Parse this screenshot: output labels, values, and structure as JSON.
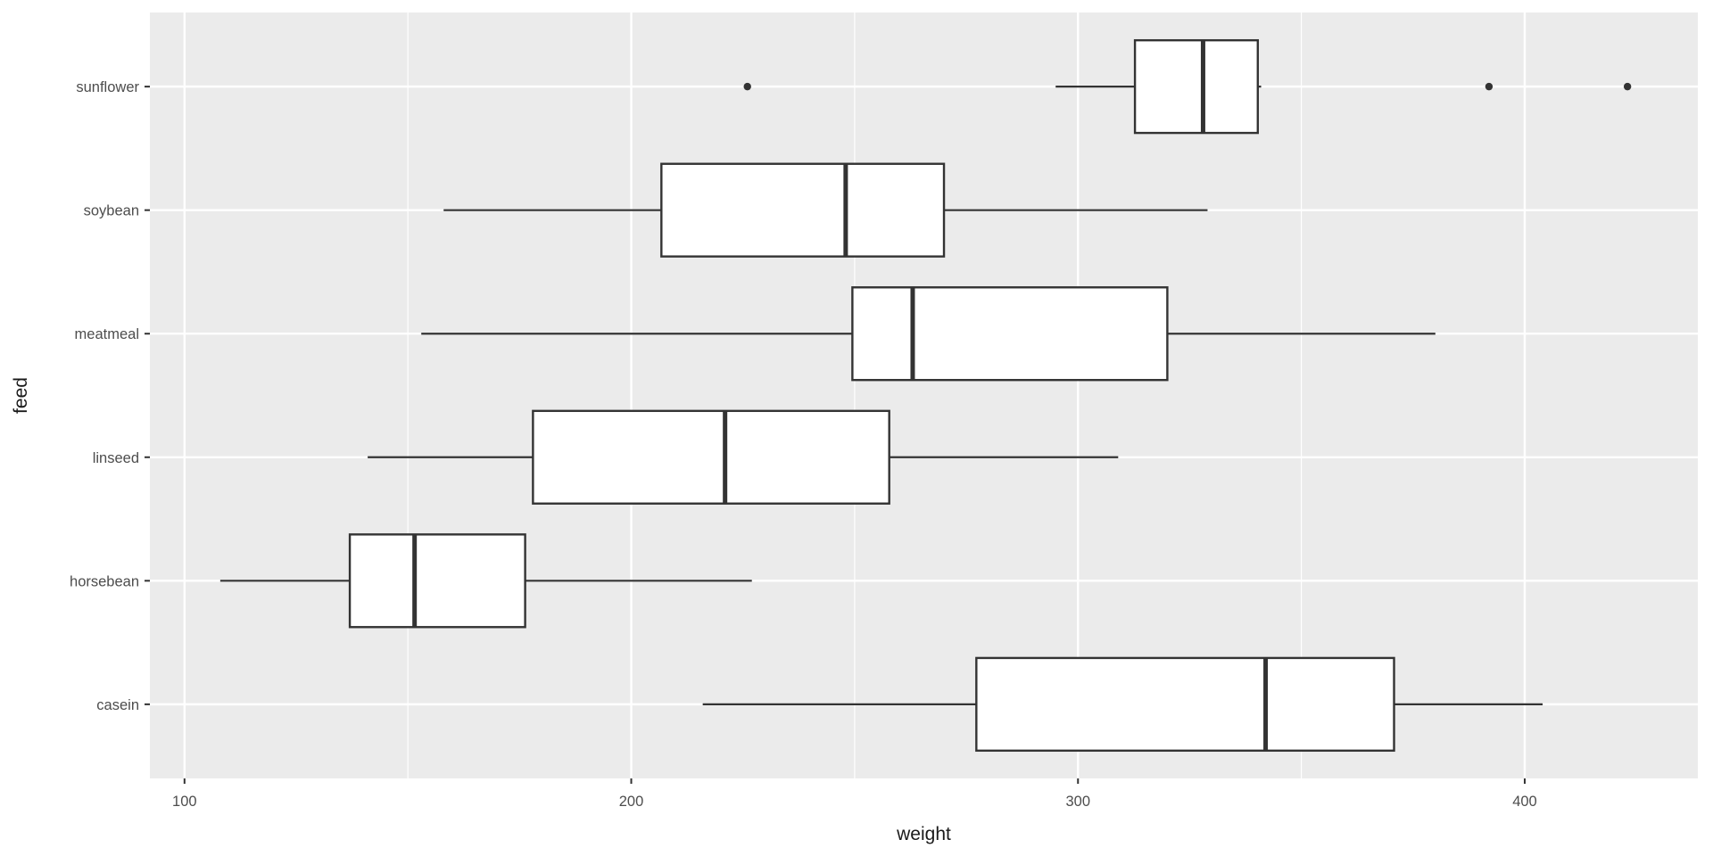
{
  "chart_data": {
    "type": "boxplot",
    "orientation": "horizontal",
    "title": "",
    "xlabel": "weight",
    "ylabel": "feed",
    "x_ticks": [
      100,
      200,
      300,
      400
    ],
    "x_tick_labels": [
      "100",
      "200",
      "300",
      "400"
    ],
    "x_minor_gridlines": [
      150,
      250,
      350
    ],
    "x_domain": [
      92.25,
      438.75
    ],
    "categories_top_to_bottom": [
      "sunflower",
      "soybean",
      "meatmeal",
      "linseed",
      "horsebean",
      "casein"
    ],
    "series": [
      {
        "feed": "sunflower",
        "whisker_low": 295,
        "q1": 312.75,
        "median": 328,
        "q3": 340.25,
        "whisker_high": 341,
        "outliers": [
          226,
          392,
          423
        ]
      },
      {
        "feed": "soybean",
        "whisker_low": 158,
        "q1": 206.75,
        "median": 248,
        "q3": 270,
        "whisker_high": 329,
        "outliers": []
      },
      {
        "feed": "meatmeal",
        "whisker_low": 153,
        "q1": 249.5,
        "median": 263,
        "q3": 320,
        "whisker_high": 380,
        "outliers": []
      },
      {
        "feed": "linseed",
        "whisker_low": 141,
        "q1": 178,
        "median": 221,
        "q3": 257.75,
        "whisker_high": 309,
        "outliers": []
      },
      {
        "feed": "horsebean",
        "whisker_low": 108,
        "q1": 137,
        "median": 151.5,
        "q3": 176.25,
        "whisker_high": 227,
        "outliers": []
      },
      {
        "feed": "casein",
        "whisker_low": 216,
        "q1": 277.25,
        "median": 342,
        "q3": 370.75,
        "whisker_high": 404,
        "outliers": []
      }
    ],
    "legend": "none",
    "grid": "major-and-minor-vertical, major-horizontal",
    "theme": {
      "page_bg": "#FFFFFF",
      "panel_bg": "#EBEBEB",
      "grid_color": "#FFFFFF",
      "box_fill": "#FFFFFF",
      "box_stroke": "#333333",
      "median_stroke": "#333333",
      "outlier_color": "#333333",
      "tick_mark_color": "#333333",
      "tick_label_color": "#4D4D4D",
      "axis_title_color": "#1A1A1A"
    }
  }
}
